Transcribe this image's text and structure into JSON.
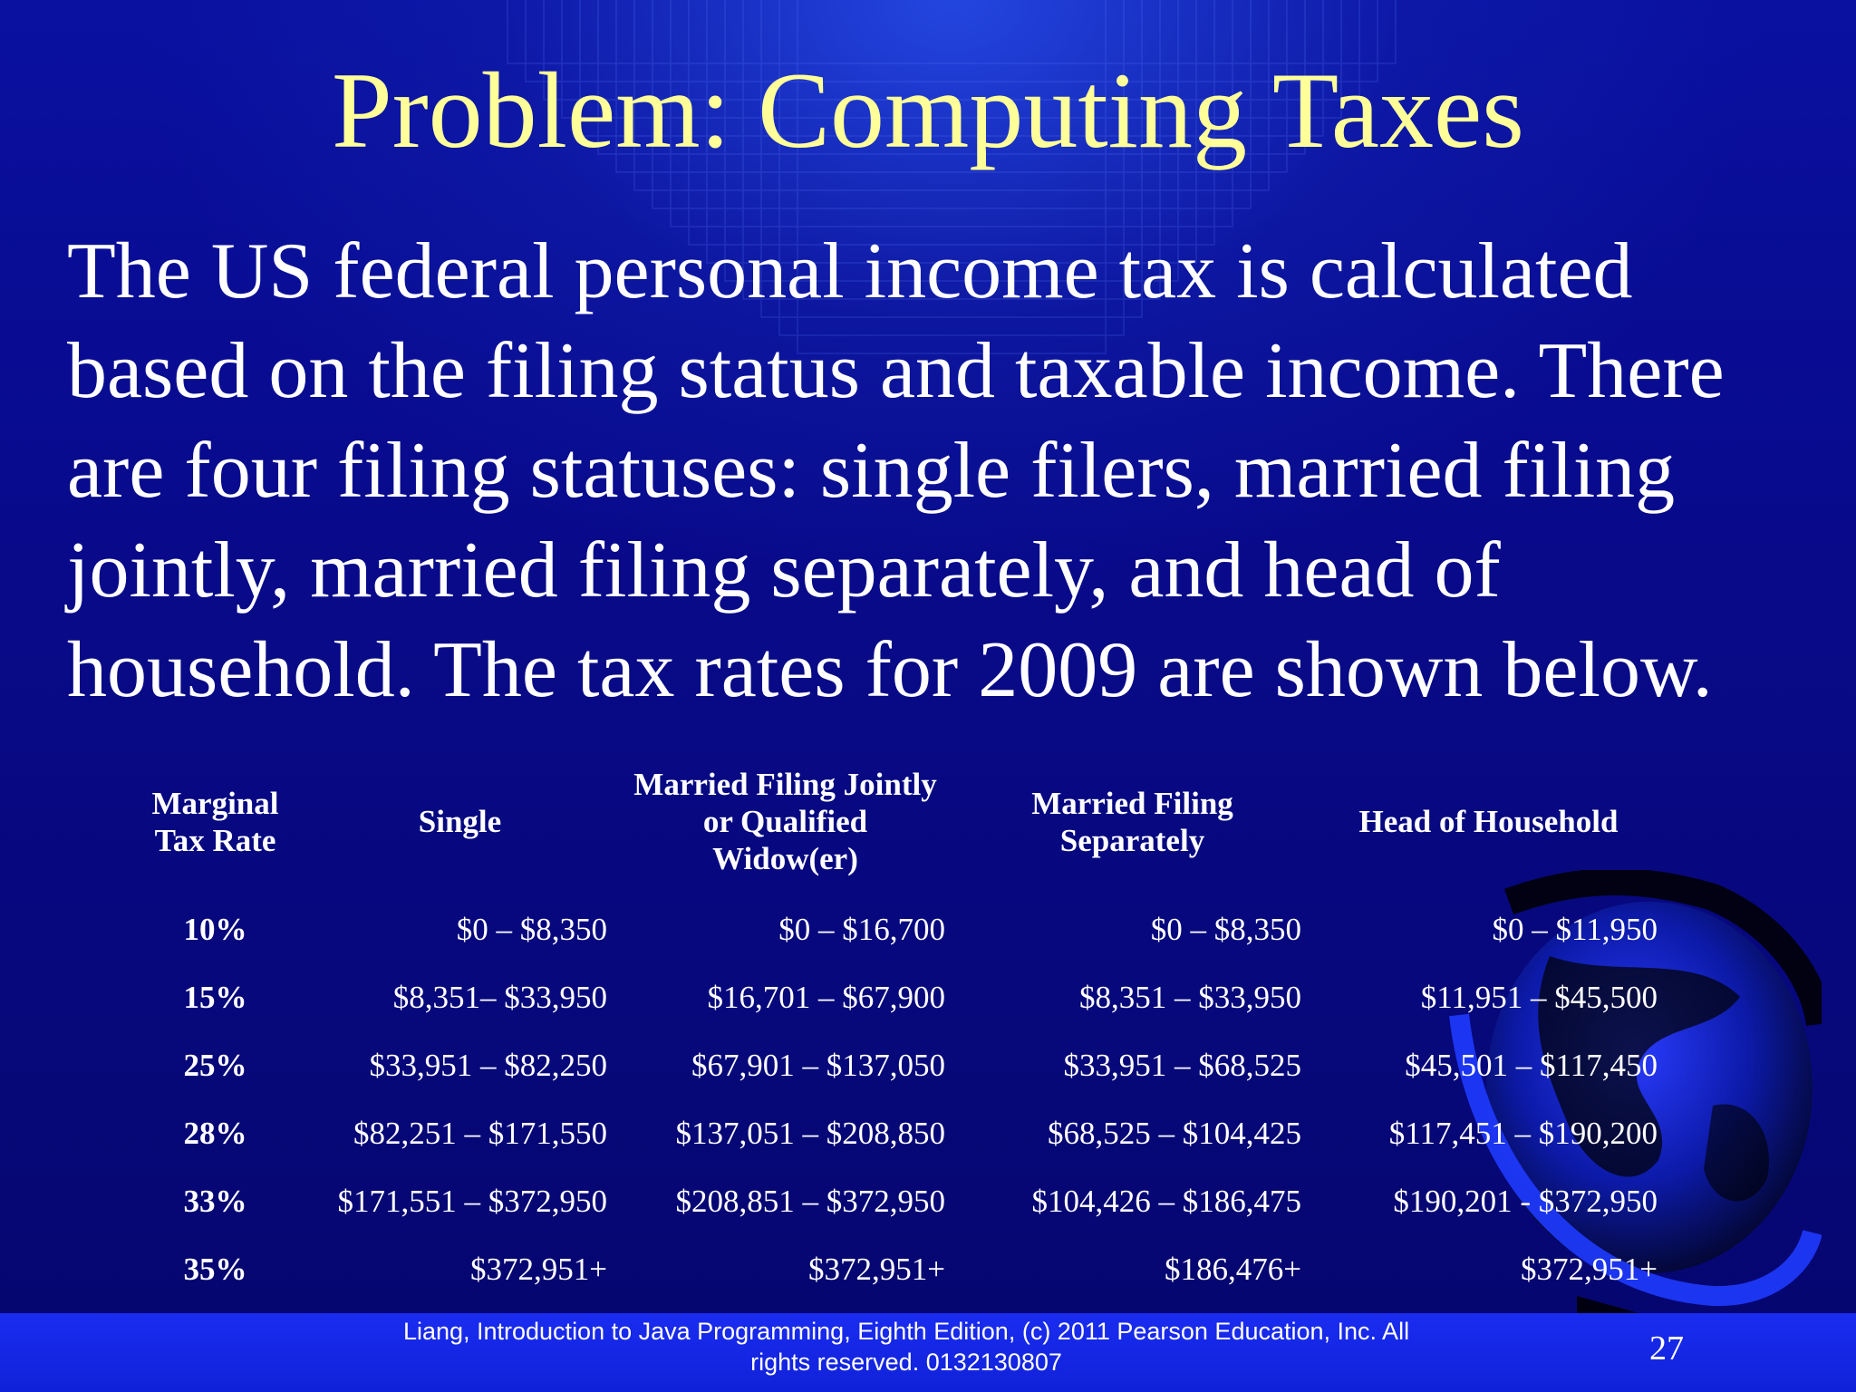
{
  "slide": {
    "title": "Problem: Computing Taxes",
    "body": "The US federal personal income tax is calculated based on the filing status and taxable income. There are four filing statuses: single filers, married filing jointly, married filing separately, and head of household. The tax rates for 2009 are shown below."
  },
  "table": {
    "headers": {
      "rate": [
        "Marginal",
        "Tax Rate"
      ],
      "single": [
        "Single"
      ],
      "joint": [
        "Married Filing Jointly",
        "or Qualified",
        "Widow(er)"
      ],
      "separate": [
        "Married Filing",
        "Separately"
      ],
      "head": [
        "Head of Household"
      ]
    },
    "rows": [
      {
        "rate": "10%",
        "single": "$0 – $8,350",
        "joint": "$0 – $16,700",
        "separate": "$0 – $8,350",
        "head": "$0 – $11,950"
      },
      {
        "rate": "15%",
        "single": "$8,351– $33,950",
        "joint": "$16,701 – $67,900",
        "separate": "$8,351 – $33,950",
        "head": "$11,951 – $45,500"
      },
      {
        "rate": "25%",
        "single": "$33,951 – $82,250",
        "joint": "$67,901 – $137,050",
        "separate": "$33,951 – $68,525",
        "head": "$45,501 – $117,450"
      },
      {
        "rate": "28%",
        "single": "$82,251 – $171,550",
        "joint": "$137,051 – $208,850",
        "separate": "$68,525 – $104,425",
        "head": "$117,451 – $190,200"
      },
      {
        "rate": "33%",
        "single": "$171,551 – $372,950",
        "joint": "$208,851 – $372,950",
        "separate": "$104,426 – $186,475",
        "head": "$190,201 - $372,950"
      },
      {
        "rate": "35%",
        "single": "$372,951+",
        "joint": "$372,951+",
        "separate": "$186,476+",
        "head": "$372,951+"
      }
    ]
  },
  "footer": {
    "line1": "Liang, Introduction to Java Programming, Eighth Edition, (c) 2011 Pearson Education, Inc. All",
    "line2": "rights reserved. 0132130807",
    "page_number": "27"
  },
  "colors": {
    "background": "#06066e",
    "title": "#ffff99",
    "text": "#ffffff",
    "footer_bar": "#1a2cf0"
  },
  "decorations": {
    "globe": "globe-icon"
  }
}
